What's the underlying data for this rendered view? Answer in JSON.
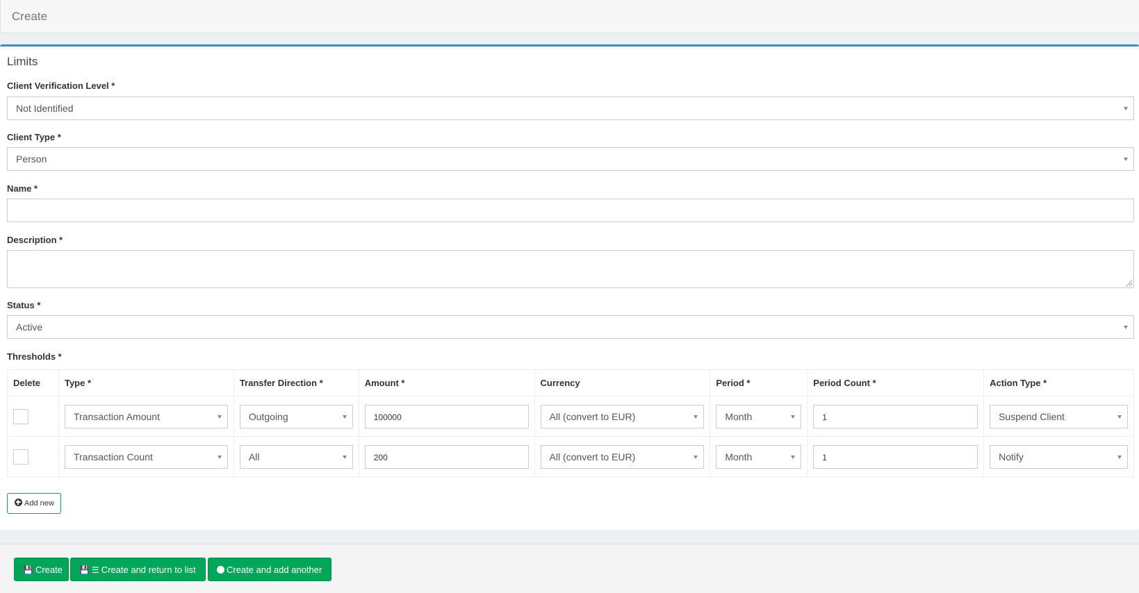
{
  "header": {
    "title": "Create"
  },
  "box": {
    "title": "Limits"
  },
  "form": {
    "verification_label": "Client Verification Level *",
    "verification_value": "Not Identified",
    "client_type_label": "Client Type *",
    "client_type_value": "Person",
    "name_label": "Name *",
    "name_value": "",
    "description_label": "Description *",
    "description_value": "",
    "status_label": "Status *",
    "status_value": "Active",
    "thresholds_label": "Thresholds *"
  },
  "thresholds": {
    "columns": [
      "Delete",
      "Type *",
      "Transfer Direction *",
      "Amount *",
      "Currency",
      "Period *",
      "Period Count *",
      "Action Type *"
    ],
    "rows": [
      {
        "type": "Transaction Amount",
        "direction": "Outgoing",
        "amount": "100000",
        "currency": "All (convert to EUR)",
        "period": "Month",
        "period_count": "1",
        "action": "Suspend Client"
      },
      {
        "type": "Transaction Count",
        "direction": "All",
        "amount": "200",
        "currency": "All (convert to EUR)",
        "period": "Month",
        "period_count": "1",
        "action": "Notify"
      }
    ],
    "add_new": "Add new"
  },
  "footer": {
    "create": "Create",
    "create_return": "Create and return to list",
    "create_another": "Create and add another"
  },
  "colors": {
    "accent": "#3c8dbc",
    "success": "#00a65a"
  }
}
